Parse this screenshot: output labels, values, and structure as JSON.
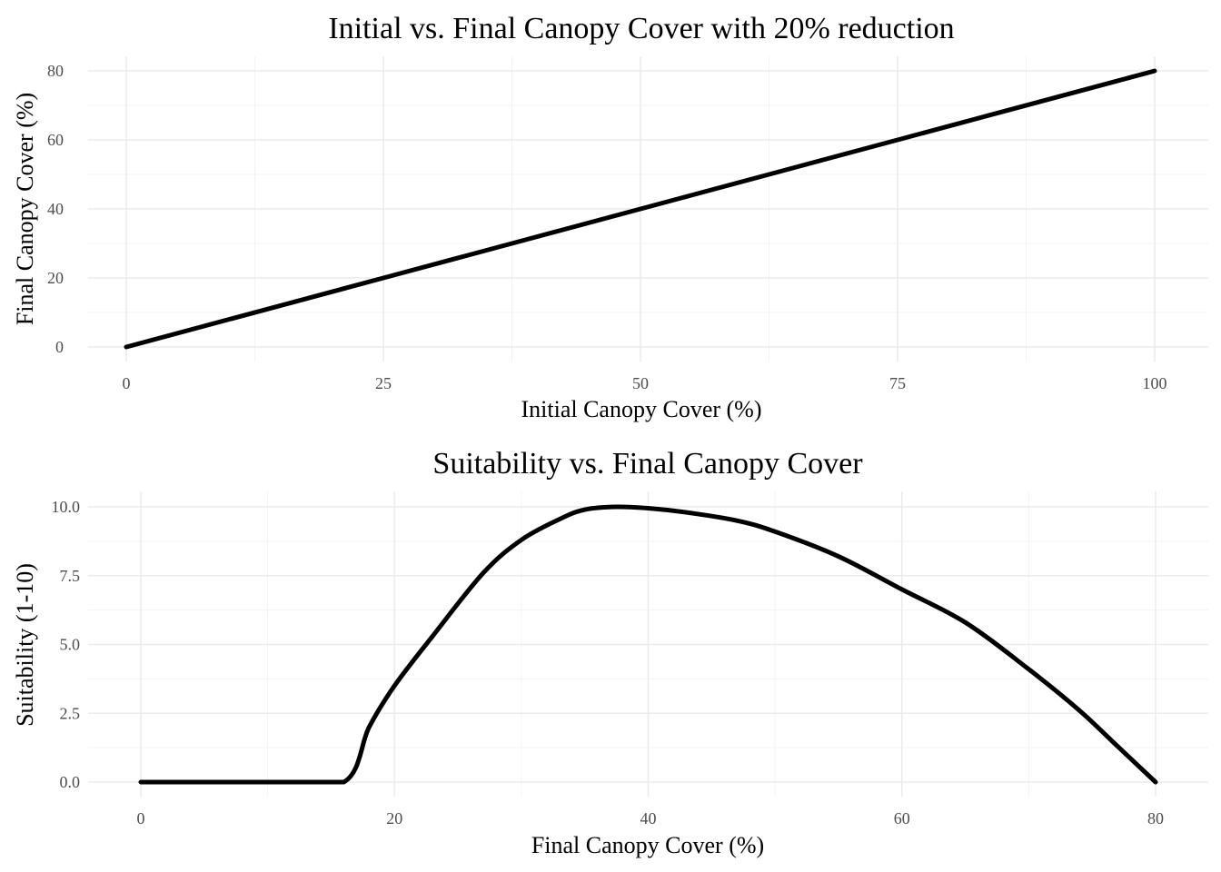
{
  "chart_data": [
    {
      "type": "line",
      "title": "Initial vs. Final Canopy Cover with 20% reduction",
      "xlabel": "Initial Canopy Cover (%)",
      "ylabel": "Final Canopy Cover (%)",
      "xlim": [
        0,
        100
      ],
      "ylim": [
        0,
        80
      ],
      "xticks": [
        0,
        25,
        50,
        75,
        100
      ],
      "yticks": [
        0,
        20,
        40,
        60,
        80
      ],
      "xtick_labels": [
        "0",
        "25",
        "50",
        "75",
        "100"
      ],
      "ytick_labels": [
        "0",
        "20",
        "40",
        "60",
        "80"
      ],
      "x": [
        0,
        25,
        50,
        75,
        100
      ],
      "y": [
        0,
        20,
        40,
        60,
        80
      ],
      "color": "#000000",
      "grid": true,
      "legend": "none"
    },
    {
      "type": "line",
      "title": "Suitability vs. Final Canopy Cover",
      "xlabel": "Final Canopy Cover (%)",
      "ylabel": "Suitability (1-10)",
      "xlim": [
        0,
        80
      ],
      "ylim": [
        0,
        10
      ],
      "xticks": [
        0,
        20,
        40,
        60,
        80
      ],
      "yticks": [
        0,
        2.5,
        5,
        7.5,
        10
      ],
      "xtick_labels": [
        "0",
        "20",
        "40",
        "60",
        "80"
      ],
      "ytick_labels": [
        "0.0",
        "2.5",
        "5.0",
        "7.5",
        "10.0"
      ],
      "x": [
        0,
        5,
        10,
        16,
        18,
        20,
        23,
        27,
        30,
        33,
        35,
        37.5,
        40,
        43,
        47,
        50,
        55,
        60,
        65,
        70,
        74,
        77,
        80
      ],
      "y": [
        0,
        0,
        0,
        0,
        2.0,
        3.5,
        5.3,
        7.6,
        8.8,
        9.55,
        9.9,
        10.0,
        9.95,
        9.8,
        9.5,
        9.1,
        8.2,
        7.0,
        5.8,
        4.1,
        2.6,
        1.3,
        0
      ],
      "color": "#000000",
      "grid": true,
      "legend": "none"
    }
  ]
}
